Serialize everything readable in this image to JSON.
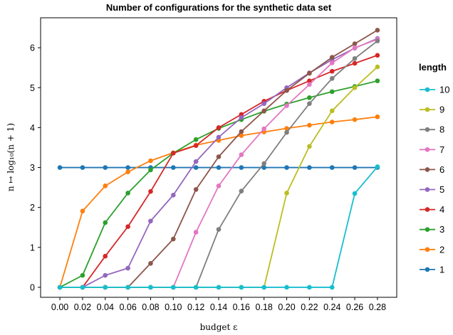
{
  "chart_data": {
    "type": "line",
    "title": "Number of configurations for the synthetic data set",
    "xlabel": "budget ε",
    "ylabel": "n ↦ log₁₀(n + 1)",
    "x": [
      0.0,
      0.02,
      0.04,
      0.06,
      0.08,
      0.1,
      0.12,
      0.14,
      0.16,
      0.18,
      0.2,
      0.22,
      0.24,
      0.26,
      0.28
    ],
    "x_tick_labels": [
      "0.00",
      "0.02",
      "0.04",
      "0.06",
      "0.08",
      "0.10",
      "0.12",
      "0.14",
      "0.16",
      "0.18",
      "0.20",
      "0.22",
      "0.24",
      "0.26",
      "0.28"
    ],
    "y_ticks": [
      0,
      1,
      2,
      3,
      4,
      5,
      6
    ],
    "xlim": [
      -0.017,
      0.297
    ],
    "ylim": [
      -0.25,
      6.75
    ],
    "grid": false,
    "legend": {
      "title": "length",
      "placement": "right",
      "order": [
        "10",
        "9",
        "8",
        "7",
        "6",
        "5",
        "4",
        "3",
        "2",
        "1"
      ]
    },
    "series": [
      {
        "name": "1",
        "color": "#1f77b4",
        "values": [
          3.0,
          3.0,
          3.0,
          3.0,
          3.0,
          3.0,
          3.0,
          3.0,
          3.0,
          3.0,
          3.0,
          3.0,
          3.0,
          3.0,
          3.0
        ]
      },
      {
        "name": "2",
        "color": "#ff7f0e",
        "values": [
          0.0,
          1.91,
          2.54,
          2.89,
          3.17,
          3.37,
          3.56,
          3.68,
          3.8,
          3.89,
          3.98,
          4.06,
          4.14,
          4.2,
          4.27
        ]
      },
      {
        "name": "3",
        "color": "#2ca02c",
        "values": [
          0.0,
          0.3,
          1.62,
          2.36,
          2.94,
          3.36,
          3.7,
          3.98,
          4.2,
          4.41,
          4.59,
          4.75,
          4.9,
          5.03,
          5.17
        ]
      },
      {
        "name": "4",
        "color": "#d62728",
        "values": [
          0.0,
          0.0,
          0.78,
          1.52,
          2.4,
          3.36,
          3.55,
          4.0,
          4.33,
          4.66,
          4.93,
          5.17,
          5.41,
          5.61,
          5.81
        ]
      },
      {
        "name": "5",
        "color": "#9467bd",
        "values": [
          0.0,
          0.0,
          0.3,
          0.48,
          1.66,
          2.31,
          3.15,
          3.76,
          4.25,
          4.6,
          5.0,
          5.37,
          5.7,
          5.99,
          6.23
        ]
      },
      {
        "name": "6",
        "color": "#8c564b",
        "values": [
          0.0,
          0.0,
          0.0,
          0.0,
          0.6,
          1.21,
          2.45,
          3.27,
          3.9,
          4.42,
          4.93,
          5.36,
          5.76,
          6.1,
          6.44
        ]
      },
      {
        "name": "7",
        "color": "#e377c2",
        "values": [
          0.0,
          0.0,
          0.0,
          0.0,
          0.0,
          0.0,
          1.38,
          2.54,
          3.32,
          3.97,
          4.55,
          5.08,
          5.62,
          6.0,
          6.21
        ]
      },
      {
        "name": "8",
        "color": "#7f7f7f",
        "values": [
          0.0,
          0.0,
          0.0,
          0.0,
          0.0,
          0.0,
          0.0,
          1.45,
          2.41,
          3.1,
          3.88,
          4.6,
          5.23,
          5.73,
          6.17
        ]
      },
      {
        "name": "9",
        "color": "#bcbd22",
        "values": [
          0.0,
          0.0,
          0.0,
          0.0,
          0.0,
          0.0,
          0.0,
          0.0,
          0.0,
          0.0,
          2.36,
          3.53,
          4.42,
          5.0,
          5.52
        ]
      },
      {
        "name": "10",
        "color": "#17becf",
        "values": [
          0.0,
          0.0,
          0.0,
          0.0,
          0.0,
          0.0,
          0.0,
          0.0,
          0.0,
          0.0,
          0.0,
          0.0,
          0.0,
          2.35,
          3.02
        ]
      }
    ]
  }
}
